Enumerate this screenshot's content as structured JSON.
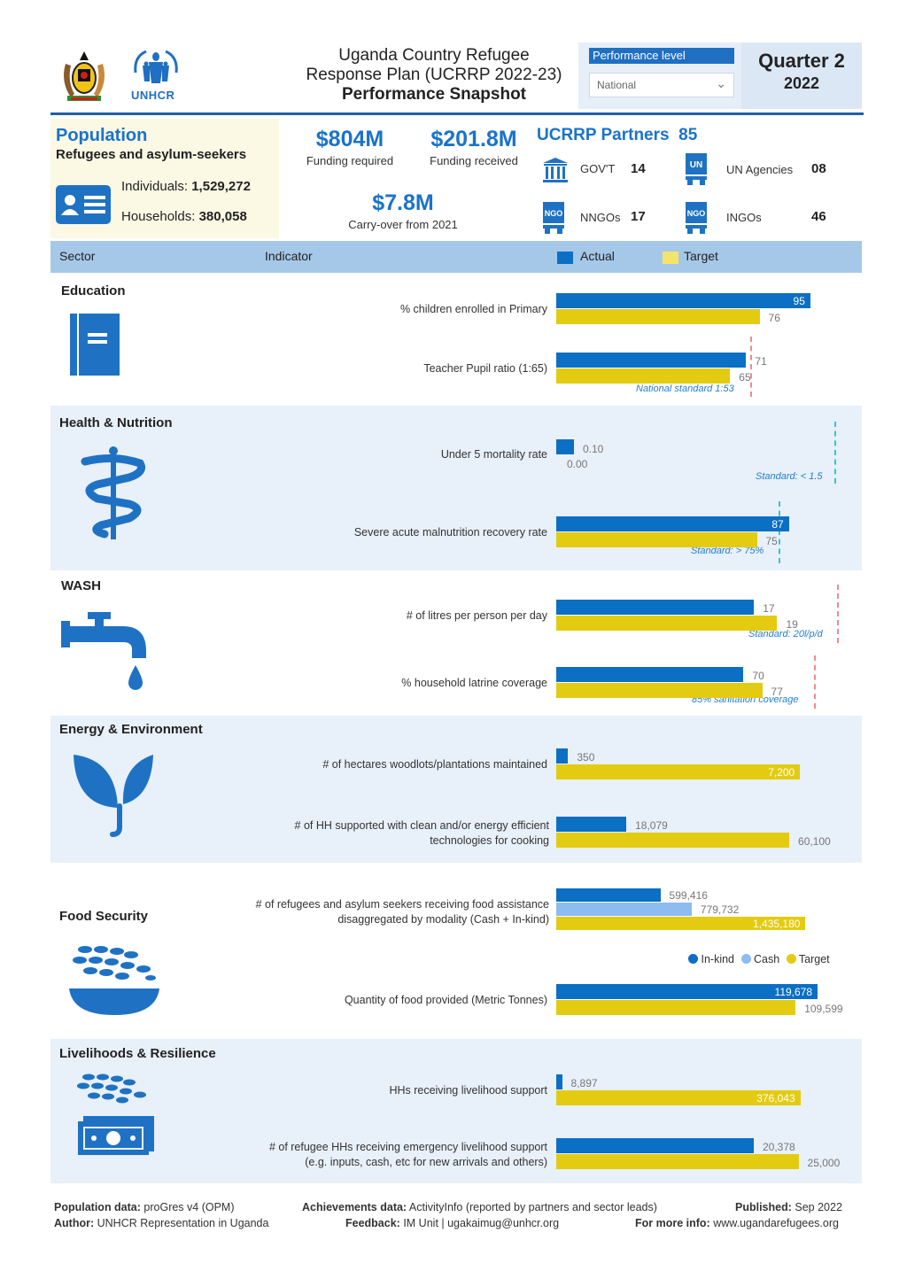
{
  "header": {
    "title_line1": "Uganda Country Refugee",
    "title_line2": "Response Plan (UCRRP 2022-23)",
    "title_line3": "Performance Snapshot",
    "unhcr_logo_text": "UNHCR",
    "performance_label": "Performance level",
    "performance_selected": "National",
    "quarter": "Quarter 2",
    "year": "2022"
  },
  "population": {
    "title": "Population",
    "subtitle": "Refugees and asylum-seekers",
    "individuals_label": "Individuals:",
    "individuals_value": "1,529,272",
    "households_label": "Households:",
    "households_value": "380,058"
  },
  "funding": {
    "required_value": "$804M",
    "required_label": "Funding required",
    "received_value": "$201.8M",
    "received_label": "Funding received",
    "carryover_value": "$7.8M",
    "carryover_label": "Carry-over from 2021"
  },
  "partners": {
    "title": "UCRRP Partners",
    "total": "85",
    "govt_label": "GOV'T",
    "govt_value": "14",
    "un_label": "UN Agencies",
    "un_value": "08",
    "nngo_label": "NNGOs",
    "nngo_value": "17",
    "ingo_label": "INGOs",
    "ingo_value": "46"
  },
  "table_header": {
    "sector": "Sector",
    "indicator": "Indicator",
    "actual": "Actual",
    "target": "Target"
  },
  "colors": {
    "actual": "#0b6fc4",
    "target": "#e3cb12",
    "cash": "#8cbcf2",
    "band": "#e8f0fa",
    "std_line": "#f08a8a",
    "std_line_teal": "#39c2cf"
  },
  "sectors": [
    {
      "name": "Education",
      "icon": "book-icon",
      "indicators": [
        {
          "label": "% children enrolled in Primary",
          "actual": 95,
          "target": 76,
          "actual_label": "95",
          "target_label": "76"
        },
        {
          "label": "Teacher Pupil ratio (1:65)",
          "actual": 71,
          "target": 65,
          "actual_label": "71",
          "target_label": "65",
          "standard": "National standard 1:53"
        }
      ]
    },
    {
      "name": "Health & Nutrition",
      "icon": "caduceus-icon",
      "indicators": [
        {
          "label": "Under 5 mortality rate",
          "actual": 0.1,
          "target": 0.0,
          "actual_label": "0.10",
          "target_label": "0.00",
          "standard": "Standard: < 1.5"
        },
        {
          "label": "Severe acute malnutrition recovery rate",
          "actual": 87,
          "target": 75,
          "actual_label": "87",
          "target_label": "75",
          "standard": "Standard: > 75%"
        }
      ]
    },
    {
      "name": "WASH",
      "icon": "tap-icon",
      "indicators": [
        {
          "label": "# of litres per person per day",
          "actual": 17,
          "target": 19,
          "actual_label": "17",
          "target_label": "19",
          "standard": "Standard: 20l/p/d"
        },
        {
          "label": "% household latrine coverage",
          "actual": 70,
          "target": 77,
          "actual_label": "70",
          "target_label": "77",
          "standard": "85% sanitation coverage"
        }
      ]
    },
    {
      "name": "Energy & Environment",
      "icon": "plant-icon",
      "indicators": [
        {
          "label": "# of hectares woodlots/plantations maintained",
          "actual": 350,
          "target": 7200,
          "actual_label": "350",
          "target_label": "7,200"
        },
        {
          "label_line1": "# of HH supported with clean and/or energy efficient",
          "label_line2": "technologies for cooking",
          "actual": 18079,
          "target": 60100,
          "actual_label": "18,079",
          "target_label": "60,100"
        }
      ]
    },
    {
      "name": "Food Security",
      "icon": "food-bowl-icon",
      "indicators": [
        {
          "label_line1": "# of refugees and asylum seekers receiving food assistance",
          "label_line2": "disaggregated by modality (Cash + In-kind)",
          "inkind": 599416,
          "cash": 779732,
          "target": 1435180,
          "inkind_label": "599,416",
          "cash_label": "779,732",
          "target_label": "1,435,180"
        },
        {
          "label": "Quantity of food provided (Metric Tonnes)",
          "actual": 119678,
          "target": 109599,
          "actual_label": "119,678",
          "target_label": "109,599"
        }
      ],
      "legend": [
        "In-kind",
        "Cash",
        "Target"
      ]
    },
    {
      "name": "Livelihoods & Resilience",
      "icon": "livelihood-cash-icon",
      "indicators": [
        {
          "label": "HHs receiving livelihood support",
          "actual": 8897,
          "target": 376043,
          "actual_label": "8,897",
          "target_label": "376,043"
        },
        {
          "label_line1": "# of refugee HHs receiving emergency livelihood support",
          "label_line2": "(e.g. inputs, cash, etc for new arrivals and others)",
          "actual": 20378,
          "target": 25000,
          "actual_label": "20,378",
          "target_label": "25,000"
        }
      ]
    }
  ],
  "footer": {
    "pop_data_label": "Population data:",
    "pop_data_value": "proGres v4 (OPM)",
    "author_label": "Author:",
    "author_value": "UNHCR Representation in Uganda",
    "achievements_label": "Achievements data:",
    "achievements_value": "ActivityInfo (reported by partners and sector leads)",
    "feedback_label": "Feedback:",
    "feedback_value": "IM Unit | ugakaimug@unhcr.org",
    "published_label": "Published:",
    "published_value": "Sep 2022",
    "more_info_label": "For more info:",
    "more_info_value": "www.ugandarefugees.org"
  }
}
